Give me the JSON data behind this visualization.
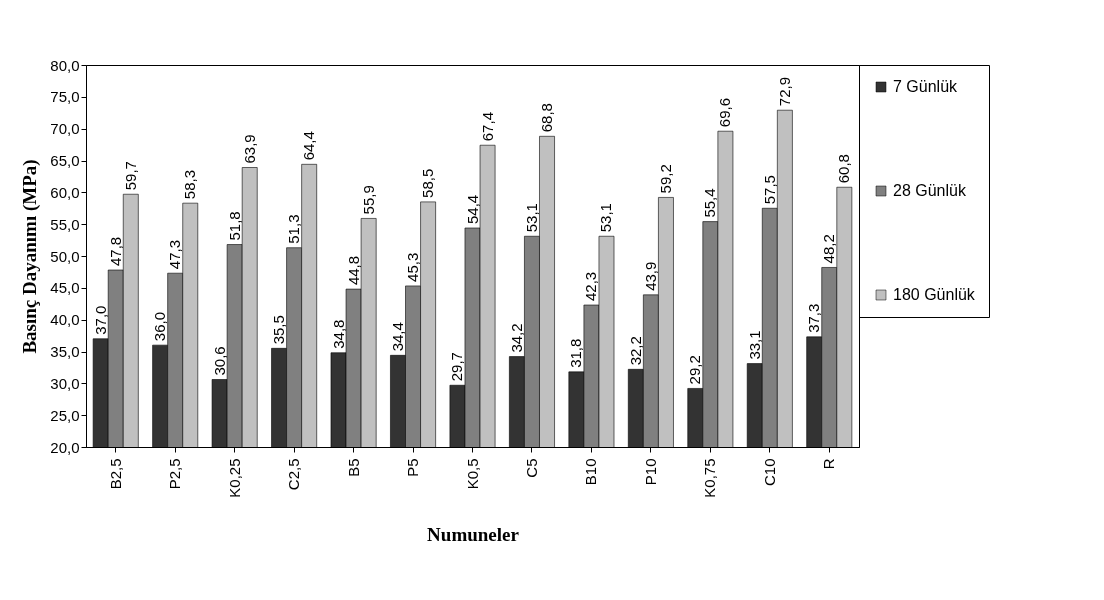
{
  "chart_data": {
    "type": "bar",
    "xlabel": "Numuneler",
    "ylabel": "Basınç Dayanımı (MPa)",
    "categories": [
      "B2,5",
      "P2,5",
      "K0,25",
      "C2,5",
      "B5",
      "P5",
      "K0,5",
      "C5",
      "B10",
      "P10",
      "K0,75",
      "C10",
      "R"
    ],
    "series": [
      {
        "name": "7 Günlük",
        "color": "#333333",
        "values": [
          37.0,
          36.0,
          30.6,
          35.5,
          34.8,
          34.4,
          29.7,
          34.2,
          31.8,
          32.2,
          29.2,
          33.1,
          37.3
        ],
        "value_labels": [
          "37,0",
          "36,0",
          "30,6",
          "35,5",
          "34,8",
          "34,4",
          "29,7",
          "34,2",
          "31,8",
          "32,2",
          "29,2",
          "33,1",
          "37,3"
        ]
      },
      {
        "name": "28 Günlük",
        "color": "#808080",
        "values": [
          47.8,
          47.3,
          51.8,
          51.3,
          44.8,
          45.3,
          54.4,
          53.1,
          42.3,
          43.9,
          55.4,
          57.5,
          48.2
        ],
        "value_labels": [
          "47,8",
          "47,3",
          "51,8",
          "51,3",
          "44,8",
          "45,3",
          "54,4",
          "53,1",
          "42,3",
          "43,9",
          "55,4",
          "57,5",
          "48,2"
        ]
      },
      {
        "name": "180 Günlük",
        "color": "#c0c0c0",
        "values": [
          59.7,
          58.3,
          63.9,
          64.4,
          55.9,
          58.5,
          67.4,
          68.8,
          53.1,
          59.2,
          69.6,
          72.9,
          60.8
        ],
        "value_labels": [
          "59,7",
          "58,3",
          "63,9",
          "64,4",
          "55,9",
          "58,5",
          "67,4",
          "68,8",
          "53,1",
          "59,2",
          "69,6",
          "72,9",
          "60,8"
        ]
      }
    ],
    "ylim": [
      20,
      80
    ],
    "yticks": [
      {
        "value": 20,
        "label": "20,0"
      },
      {
        "value": 25,
        "label": "25,0"
      },
      {
        "value": 30,
        "label": "30,0"
      },
      {
        "value": 35,
        "label": "35,0"
      },
      {
        "value": 40,
        "label": "40,0"
      },
      {
        "value": 45,
        "label": "45,0"
      },
      {
        "value": 50,
        "label": "50,0"
      },
      {
        "value": 55,
        "label": "55,0"
      },
      {
        "value": 60,
        "label": "60,0"
      },
      {
        "value": 65,
        "label": "65,0"
      },
      {
        "value": 70,
        "label": "70,0"
      },
      {
        "value": 75,
        "label": "75,0"
      },
      {
        "value": 80,
        "label": "80,0"
      }
    ],
    "grid": false,
    "legend": "right"
  }
}
